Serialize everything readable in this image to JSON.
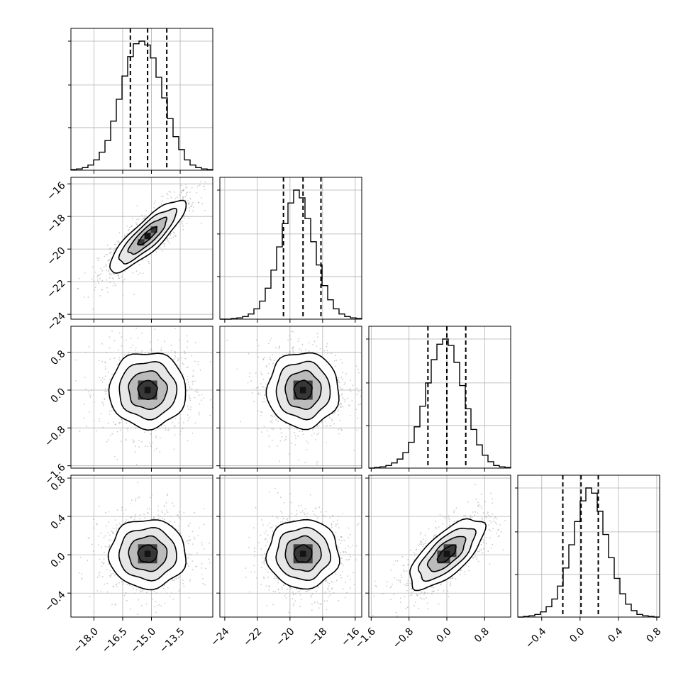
{
  "chart_data": {
    "type": "corner",
    "params": [
      {
        "range": [
          -19.2,
          -11.8
        ],
        "ticks": [
          -18.0,
          -16.5,
          -15.0,
          -13.5
        ],
        "tick_labels": [
          "−18.0",
          "−16.5",
          "−15.0",
          "−13.5"
        ],
        "mean": -15.2,
        "std": 1.0,
        "quantiles": [
          -16.1,
          -15.2,
          -14.2
        ]
      },
      {
        "range": [
          -24.3,
          -15.6
        ],
        "ticks": [
          -24,
          -22,
          -20,
          -18,
          -16
        ],
        "tick_labels": [
          "−24",
          "−22",
          "−20",
          "−18",
          "−16"
        ],
        "mean": -19.2,
        "std": 1.1,
        "quantiles": [
          -20.4,
          -19.2,
          -18.1
        ]
      },
      {
        "range": [
          -1.65,
          1.35
        ],
        "ticks": [
          -1.6,
          -0.8,
          0.0,
          0.8
        ],
        "tick_labels": [
          "−1.6",
          "−0.8",
          "0.0",
          "0.8"
        ],
        "mean": 0.0,
        "std": 0.4,
        "quantiles": [
          -0.4,
          0.0,
          0.4
        ]
      },
      {
        "range": [
          -0.65,
          0.83
        ],
        "ticks": [
          -0.4,
          0.0,
          0.4,
          0.8
        ],
        "tick_labels": [
          "−0.4",
          "0.0",
          "0.4",
          "0.8"
        ],
        "mean": 0.01,
        "std": 0.18,
        "quantiles": [
          -0.18,
          0.01,
          0.19
        ]
      }
    ],
    "histograms": [
      {
        "counts": [
          0.5,
          1,
          2,
          4,
          8,
          14,
          23,
          38,
          55,
          73,
          88,
          98,
          100,
          97,
          87,
          72,
          56,
          40,
          26,
          16,
          8,
          4,
          2,
          1,
          0.5
        ]
      },
      {
        "counts": [
          0,
          0,
          0.5,
          1,
          2,
          4,
          8,
          14,
          24,
          38,
          56,
          74,
          90,
          100,
          94,
          78,
          60,
          42,
          26,
          15,
          8,
          4,
          2,
          1,
          0.5
        ]
      },
      {
        "counts": [
          0,
          0.5,
          1,
          2,
          4,
          7,
          12,
          20,
          32,
          48,
          66,
          84,
          96,
          100,
          95,
          82,
          64,
          46,
          30,
          18,
          10,
          5,
          2,
          1,
          0.5
        ]
      },
      {
        "counts": [
          0,
          0.5,
          1,
          2,
          4,
          8,
          14,
          24,
          38,
          56,
          74,
          90,
          100,
          96,
          82,
          64,
          46,
          30,
          18,
          10,
          5,
          2,
          1,
          0.5,
          0
        ]
      }
    ],
    "correlations": [
      {
        "row": 1,
        "col": 0,
        "rho": 0.85
      },
      {
        "row": 2,
        "col": 0,
        "rho": 0.0
      },
      {
        "row": 2,
        "col": 1,
        "rho": 0.0
      },
      {
        "row": 3,
        "col": 0,
        "rho": 0.0
      },
      {
        "row": 3,
        "col": 1,
        "rho": 0.0
      },
      {
        "row": 3,
        "col": 2,
        "rho": 0.7
      }
    ],
    "contour_levels_sigma": [
      0.5,
      1.0,
      1.5,
      2.0
    ],
    "grid": true,
    "title": "",
    "xlabel": "",
    "ylabel": ""
  },
  "colors": {
    "line": "#000000",
    "grid": "#b0b0b0",
    "scatter": "#a0a0a0"
  }
}
